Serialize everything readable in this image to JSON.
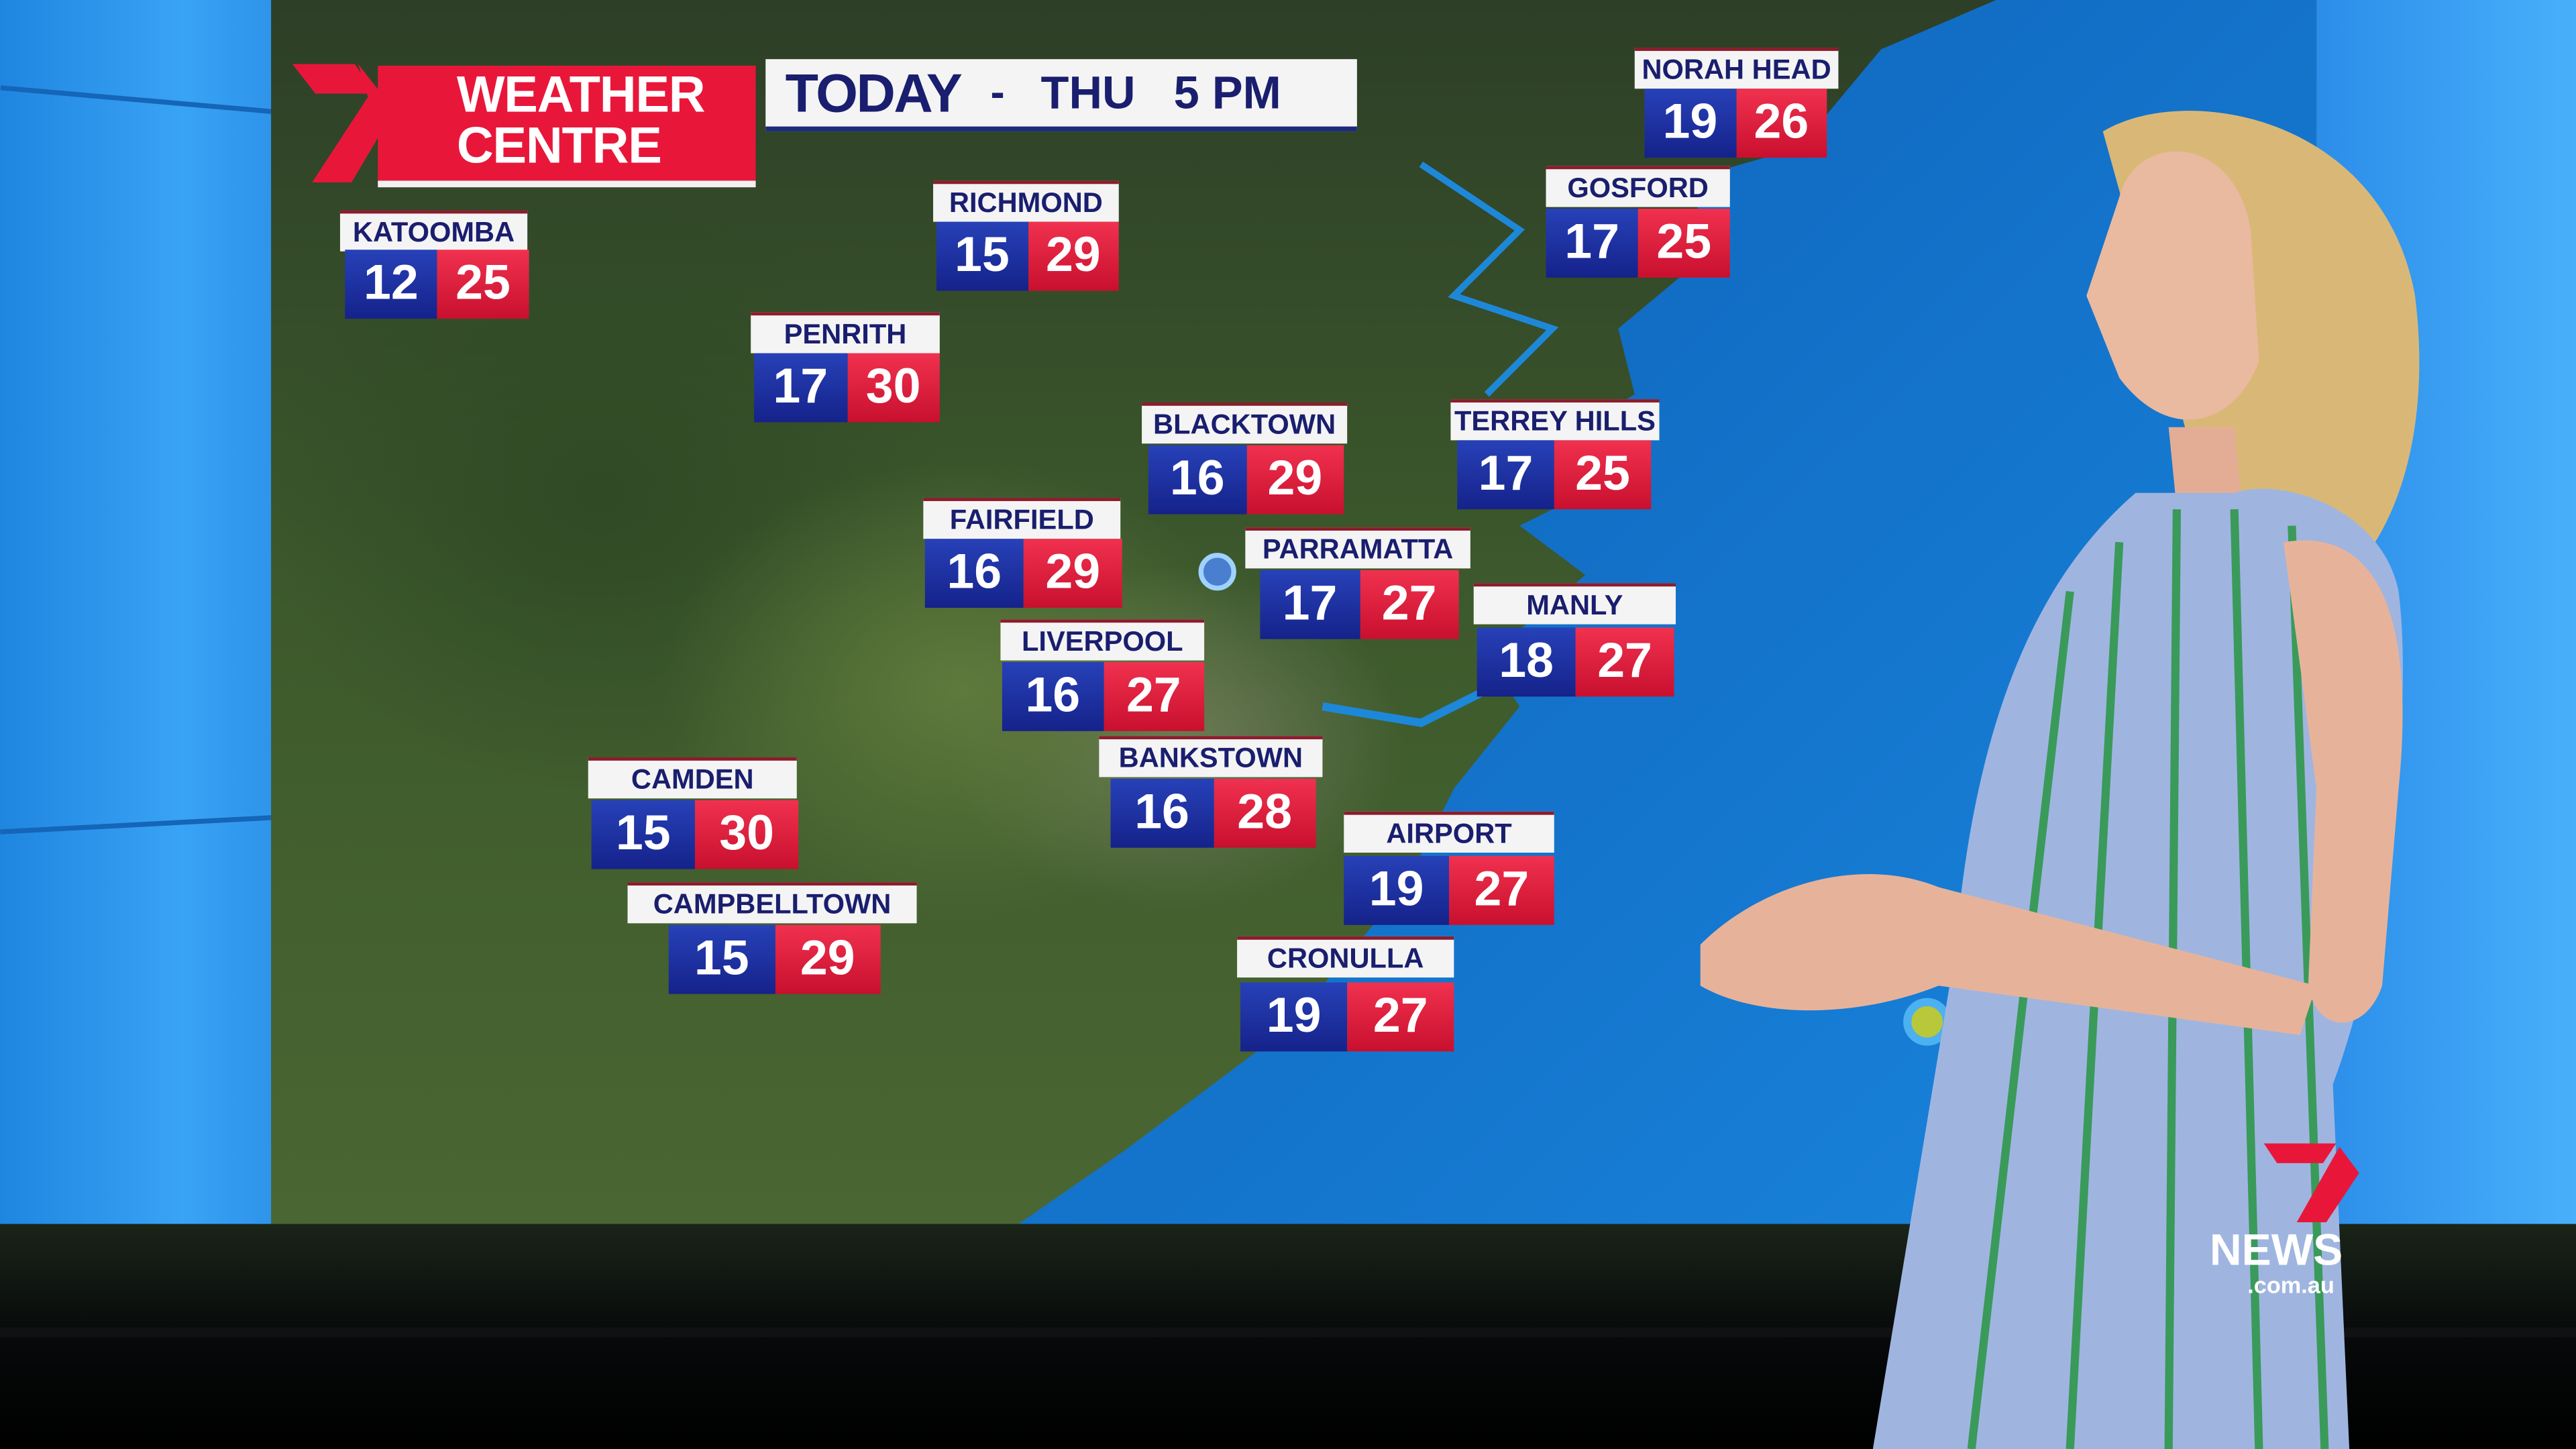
{
  "header": {
    "brand": "WEATHER CENTRE",
    "brand_line1": "WEATHER",
    "brand_line2": "CENTRE",
    "day_label": "TODAY",
    "separator": "-",
    "day_time": "THU   5 PM"
  },
  "colors": {
    "min_temp_bg": "#1c2a9a",
    "max_temp_bg": "#e0203f",
    "label_bg": "#f4f4f4",
    "label_text": "#1a1e6e",
    "brand_red": "#e8173a",
    "studio_blue": "#2a8fe6"
  },
  "cities": [
    {
      "name": "KATOOMBA",
      "min": "12",
      "max": "25"
    },
    {
      "name": "RICHMOND",
      "min": "15",
      "max": "29"
    },
    {
      "name": "PENRITH",
      "min": "17",
      "max": "30"
    },
    {
      "name": "BLACKTOWN",
      "min": "16",
      "max": "29"
    },
    {
      "name": "FAIRFIELD",
      "min": "16",
      "max": "29"
    },
    {
      "name": "PARRAMATTA",
      "min": "17",
      "max": "27"
    },
    {
      "name": "LIVERPOOL",
      "min": "16",
      "max": "27"
    },
    {
      "name": "BANKSTOWN",
      "min": "16",
      "max": "28"
    },
    {
      "name": "CAMDEN",
      "min": "15",
      "max": "30"
    },
    {
      "name": "CAMPBELLTOWN",
      "min": "15",
      "max": "29"
    },
    {
      "name": "AIRPORT",
      "min": "19",
      "max": "27"
    },
    {
      "name": "CRONULLA",
      "min": "19",
      "max": "27"
    },
    {
      "name": "TERREY HILLS",
      "min": "17",
      "max": "25"
    },
    {
      "name": "MANLY",
      "min": "18",
      "max": "27"
    },
    {
      "name": "GOSFORD",
      "min": "17",
      "max": "25"
    },
    {
      "name": "NORAH HEAD",
      "min": "19",
      "max": "26"
    }
  ],
  "watermark": {
    "word": "NEWS",
    "domain": ".com.au"
  }
}
